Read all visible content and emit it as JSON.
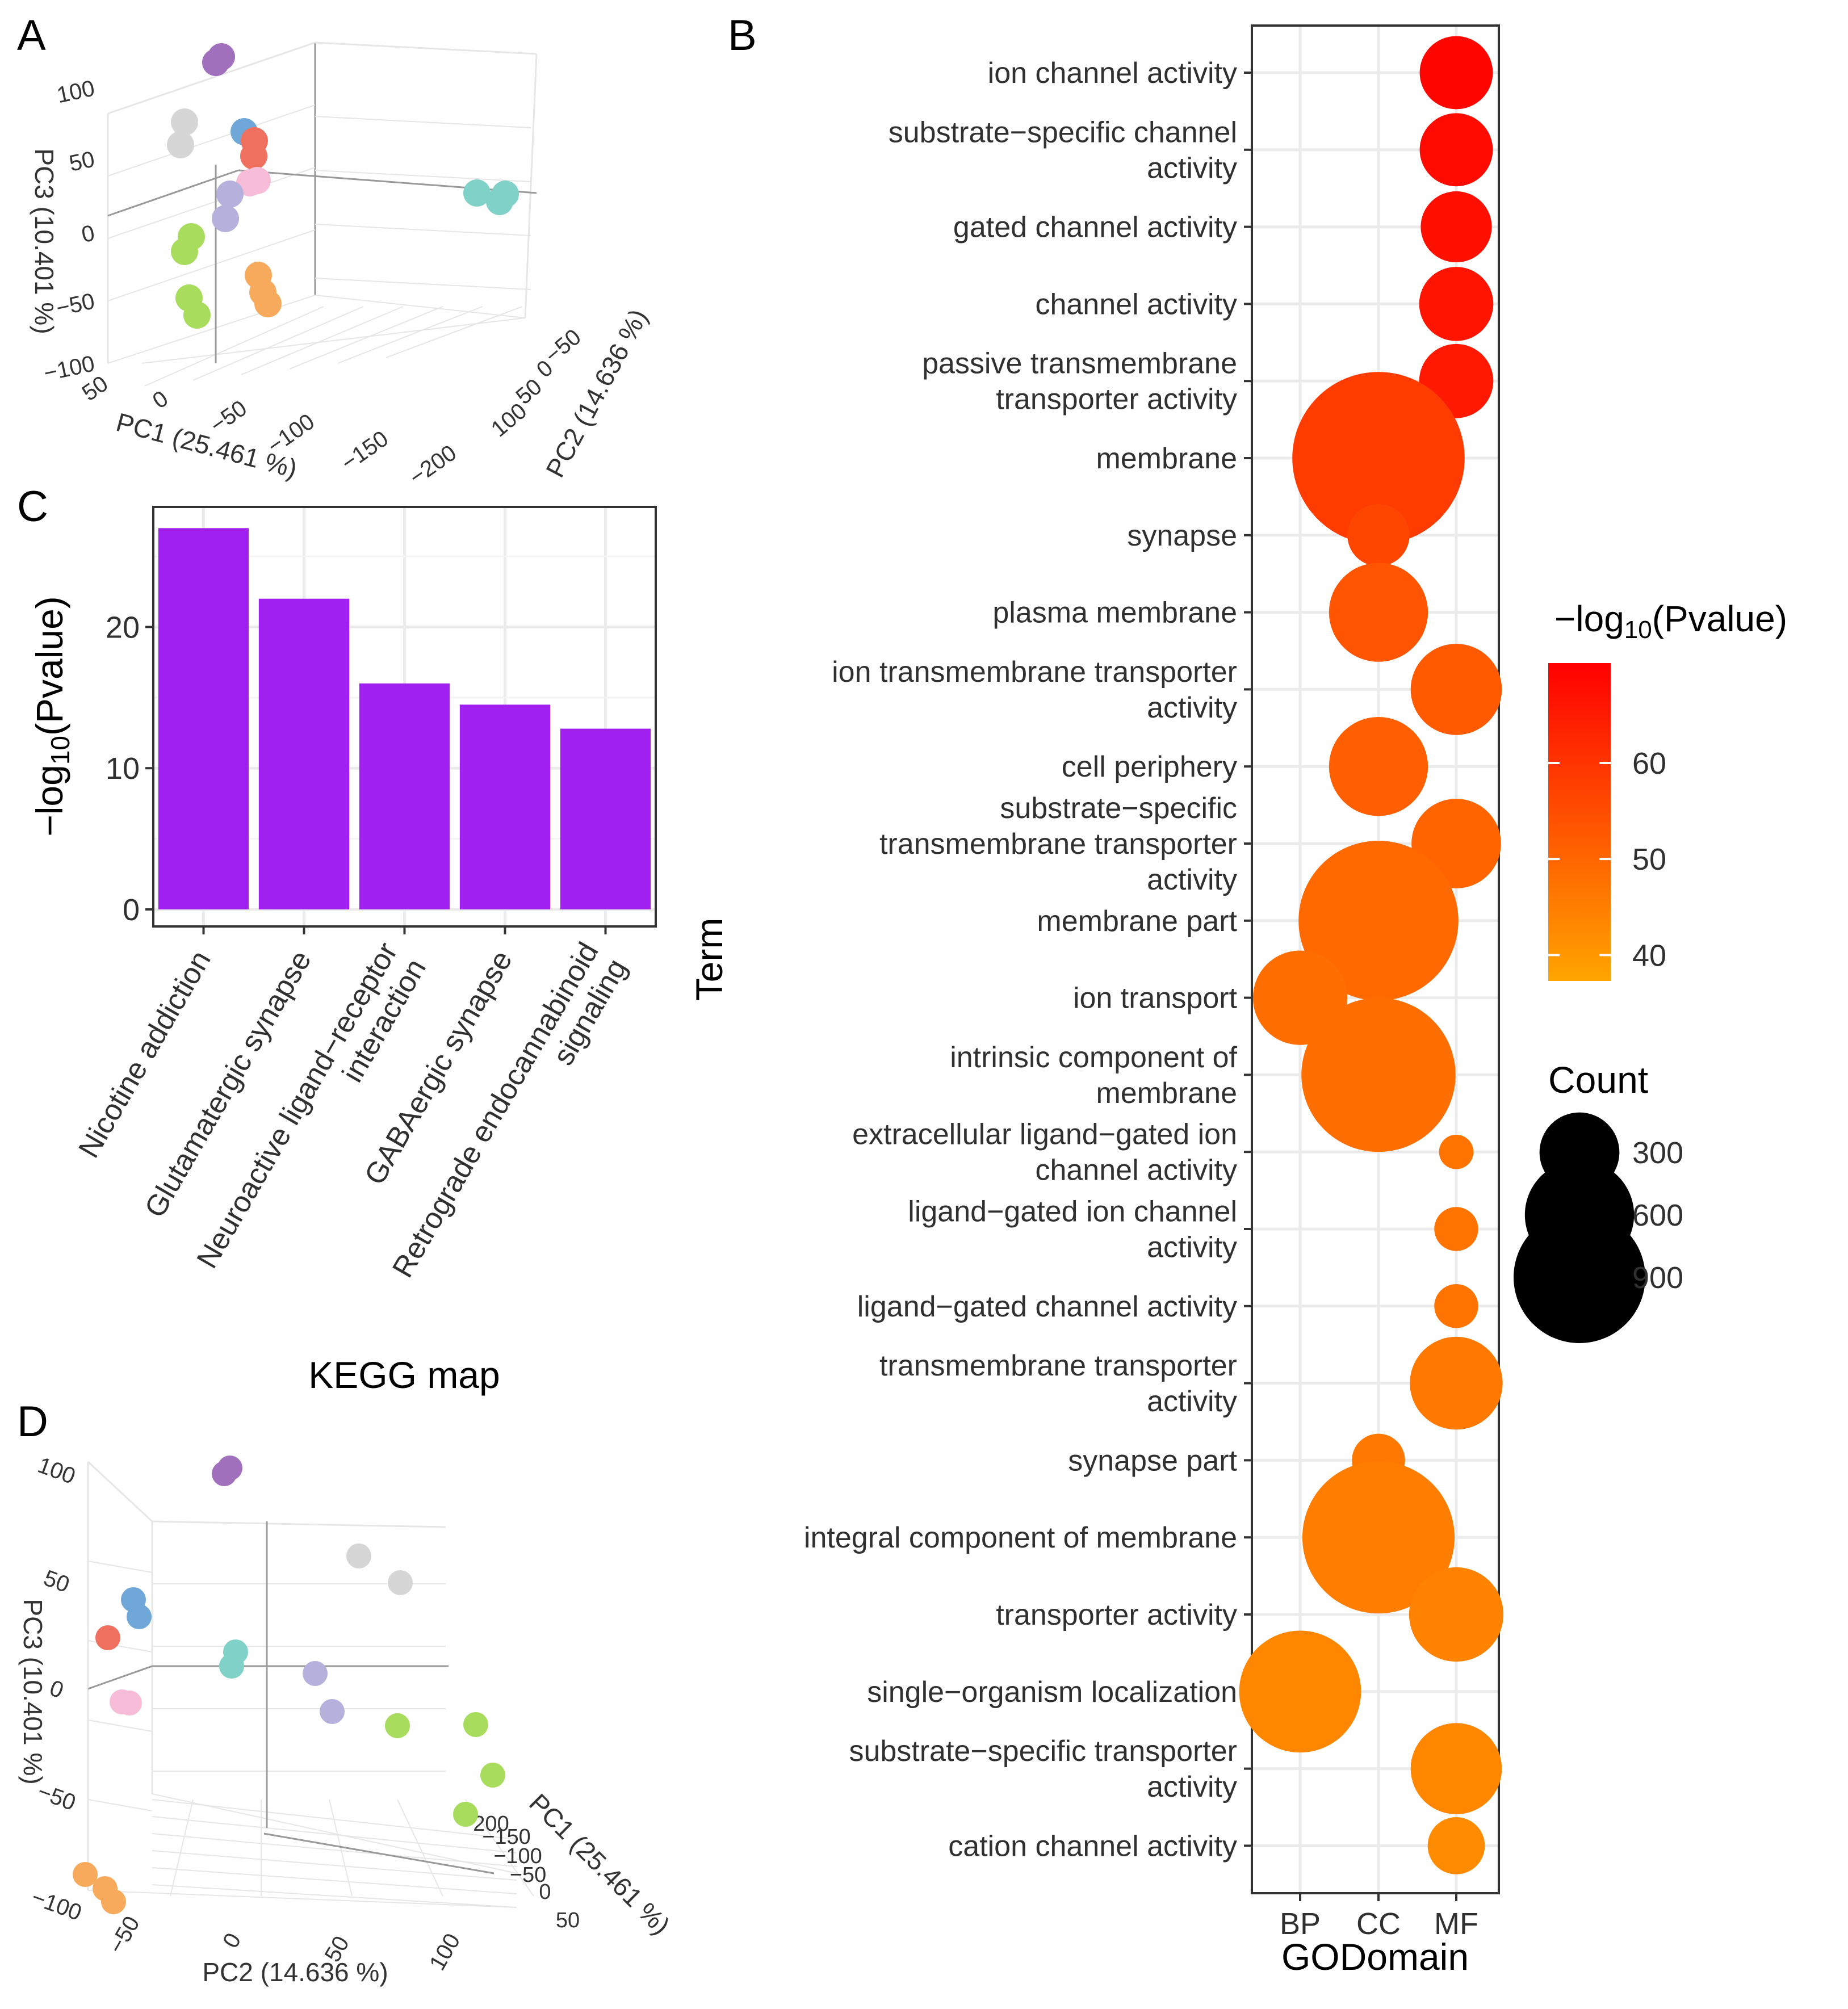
{
  "chart_data": [
    {
      "panel": "A",
      "type": "scatter",
      "subtype": "3d-pca",
      "xlabel": "PC1 (25.461 %)",
      "ylabel": "PC2 (14.636 %)",
      "zlabel": "PC3 (10.401 %)",
      "x_ticks": [
        "50",
        "0",
        "−50",
        "−100",
        "−150",
        "−200"
      ],
      "y_ticks": [
        "−50",
        "0",
        "50",
        "100"
      ],
      "z_ticks": [
        "100",
        "50",
        "0",
        "−50",
        "−100"
      ],
      "groups": [
        {
          "name": "purple",
          "color": "#a070bc"
        },
        {
          "name": "grey",
          "color": "#d6d6d6"
        },
        {
          "name": "blue",
          "color": "#6fa8d8"
        },
        {
          "name": "red",
          "color": "#f07060"
        },
        {
          "name": "pink",
          "color": "#f6bcd8"
        },
        {
          "name": "lavender",
          "color": "#b5b0dc"
        },
        {
          "name": "green",
          "color": "#a8dc5c"
        },
        {
          "name": "orange",
          "color": "#f8aa5c"
        },
        {
          "name": "teal",
          "color": "#80d2c8"
        }
      ]
    },
    {
      "panel": "B",
      "type": "scatter",
      "subtype": "bubble",
      "xlabel": "GODomain",
      "ylabel": "Term",
      "x_categories": [
        "BP",
        "CC",
        "MF"
      ],
      "points": [
        {
          "term": [
            "ion channel activity"
          ],
          "domain": "MF",
          "count": 180,
          "neglog10p": 69
        },
        {
          "term": [
            "substrate−specific channel",
            "activity"
          ],
          "domain": "MF",
          "count": 180,
          "neglog10p": 68
        },
        {
          "term": [
            "gated channel activity"
          ],
          "domain": "MF",
          "count": 170,
          "neglog10p": 67
        },
        {
          "term": [
            "channel activity"
          ],
          "domain": "MF",
          "count": 185,
          "neglog10p": 66
        },
        {
          "term": [
            "passive transmembrane",
            "transporter activity"
          ],
          "domain": "MF",
          "count": 185,
          "neglog10p": 65
        },
        {
          "term": [
            "membrane"
          ],
          "domain": "CC",
          "count": 1000,
          "neglog10p": 58
        },
        {
          "term": [
            "synapse"
          ],
          "domain": "CC",
          "count": 130,
          "neglog10p": 56
        },
        {
          "term": [
            "plasma membrane"
          ],
          "domain": "CC",
          "count": 330,
          "neglog10p": 53
        },
        {
          "term": [
            "ion transmembrane transporter",
            "activity"
          ],
          "domain": "MF",
          "count": 280,
          "neglog10p": 52
        },
        {
          "term": [
            "cell periphery"
          ],
          "domain": "CC",
          "count": 330,
          "neglog10p": 51
        },
        {
          "term": [
            "substrate−specific",
            "transmembrane transporter",
            "activity"
          ],
          "domain": "MF",
          "count": 270,
          "neglog10p": 50
        },
        {
          "term": [
            "membrane part"
          ],
          "domain": "CC",
          "count": 860,
          "neglog10p": 49
        },
        {
          "term": [
            "ion transport"
          ],
          "domain": "BP",
          "count": 300,
          "neglog10p": 48
        },
        {
          "term": [
            "intrinsic component of",
            "membrane"
          ],
          "domain": "CC",
          "count": 800,
          "neglog10p": 48
        },
        {
          "term": [
            "extracellular ligand−gated ion",
            "channel activity"
          ],
          "domain": "MF",
          "count": 40,
          "neglog10p": 47
        },
        {
          "term": [
            "ligand−gated ion channel",
            "activity"
          ],
          "domain": "MF",
          "count": 65,
          "neglog10p": 47
        },
        {
          "term": [
            "ligand−gated channel activity"
          ],
          "domain": "MF",
          "count": 65,
          "neglog10p": 47
        },
        {
          "term": [
            "transmembrane transporter",
            "activity"
          ],
          "domain": "MF",
          "count": 290,
          "neglog10p": 46
        },
        {
          "term": [
            "synapse part"
          ],
          "domain": "CC",
          "count": 95,
          "neglog10p": 46
        },
        {
          "term": [
            "integral component of membrane"
          ],
          "domain": "CC",
          "count": 780,
          "neglog10p": 45
        },
        {
          "term": [
            "transporter activity"
          ],
          "domain": "MF",
          "count": 300,
          "neglog10p": 44
        },
        {
          "term": [
            "single−organism localization"
          ],
          "domain": "BP",
          "count": 500,
          "neglog10p": 43
        },
        {
          "term": [
            "substrate−specific transporter",
            "activity"
          ],
          "domain": "MF",
          "count": 280,
          "neglog10p": 43
        },
        {
          "term": [
            "cation channel activity"
          ],
          "domain": "MF",
          "count": 110,
          "neglog10p": 42
        }
      ],
      "legend_color_title": "−log10(Pvalue)",
      "legend_color_title_parts": {
        "pre": "−log",
        "sub": "10",
        "post": "(Pvalue)"
      },
      "color_range": [
        37,
        70
      ],
      "color_ticks": [
        "60",
        "50",
        "40"
      ],
      "color_tick_values": [
        60,
        50,
        40
      ],
      "color_low": "#ffa500",
      "color_high": "#ff0000",
      "legend_size_title": "Count",
      "size_ticks": [
        "300",
        "600",
        "900"
      ],
      "size_tick_values": [
        300,
        600,
        900
      ]
    },
    {
      "panel": "C",
      "type": "bar",
      "title": "",
      "xlabel": "KEGG map",
      "ylabel": "−log10(Pvalue)",
      "ylabel_parts": {
        "pre": "−log",
        "sub": "10",
        "post": "(Pvalue)"
      },
      "categories": [
        [
          "Nicotine addiction"
        ],
        [
          "Glutamatergic synapse"
        ],
        [
          "Neuroactive ligand−receptor",
          "interaction"
        ],
        [
          "GABAergic synapse"
        ],
        [
          "Retrograde endocannabinoid",
          "signaling"
        ]
      ],
      "values": [
        27,
        22,
        16,
        14.5,
        12.8
      ],
      "ylim": [
        0,
        28.5
      ],
      "y_ticks": [
        0,
        10,
        20
      ],
      "bar_color": "#a020f0"
    },
    {
      "panel": "D",
      "type": "scatter",
      "subtype": "3d-pca",
      "xlabel": "PC2 (14.636 %)",
      "ylabel": "PC1 (25.461 %)",
      "zlabel": "PC3 (10.401 %)",
      "x_ticks": [
        "−50",
        "0",
        "50",
        "100"
      ],
      "y_ticks": [
        "200",
        "−150",
        "−100",
        "−50",
        "0",
        "50"
      ],
      "z_ticks": [
        "100",
        "50",
        "0",
        "−50",
        "−100"
      ]
    }
  ],
  "panel_labels": {
    "a": "A",
    "b": "B",
    "c": "C",
    "d": "D"
  }
}
